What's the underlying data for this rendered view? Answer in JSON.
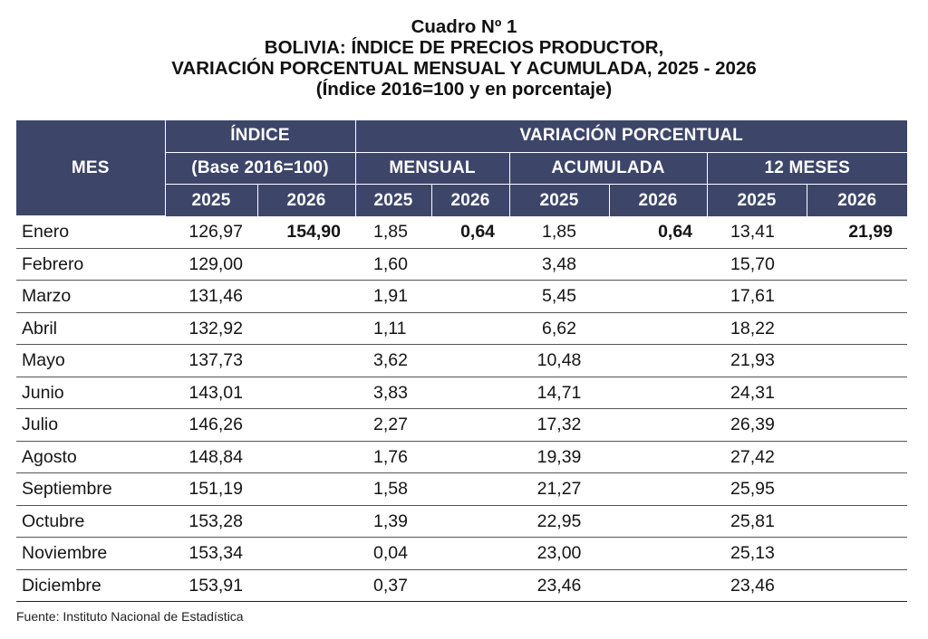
{
  "title": {
    "line1": "Cuadro Nº 1",
    "line2": "BOLIVIA: ÍNDICE DE PRECIOS PRODUCTOR,",
    "line3": "VARIACIÓN PORCENTUAL MENSUAL Y ACUMULADA, 2025 - 2026",
    "line4": "(Índice 2016=100 y en porcentaje)"
  },
  "header": {
    "mes": "MES",
    "indice": "ÍNDICE",
    "indice_base": "(Base 2016=100)",
    "variacion": "VARIACIÓN PORCENTUAL",
    "mensual": "MENSUAL",
    "acumulada": "ACUMULADA",
    "doce_meses": "12 MESES",
    "years": [
      "2025",
      "2026",
      "2025",
      "2026",
      "2025",
      "2026",
      "2025",
      "2026"
    ]
  },
  "rows": [
    {
      "mes": "Enero",
      "indice_2025": "126,97",
      "indice_2026": "154,90",
      "mensual_2025": "1,85",
      "mensual_2026": "0,64",
      "acumulada_2025": "1,85",
      "acumulada_2026": "0,64",
      "doce_2025": "13,41",
      "doce_2026": "21,99"
    },
    {
      "mes": "Febrero",
      "indice_2025": "129,00",
      "indice_2026": "",
      "mensual_2025": "1,60",
      "mensual_2026": "",
      "acumulada_2025": "3,48",
      "acumulada_2026": "",
      "doce_2025": "15,70",
      "doce_2026": ""
    },
    {
      "mes": "Marzo",
      "indice_2025": "131,46",
      "indice_2026": "",
      "mensual_2025": "1,91",
      "mensual_2026": "",
      "acumulada_2025": "5,45",
      "acumulada_2026": "",
      "doce_2025": "17,61",
      "doce_2026": ""
    },
    {
      "mes": "Abril",
      "indice_2025": "132,92",
      "indice_2026": "",
      "mensual_2025": "1,11",
      "mensual_2026": "",
      "acumulada_2025": "6,62",
      "acumulada_2026": "",
      "doce_2025": "18,22",
      "doce_2026": ""
    },
    {
      "mes": "Mayo",
      "indice_2025": "137,73",
      "indice_2026": "",
      "mensual_2025": "3,62",
      "mensual_2026": "",
      "acumulada_2025": "10,48",
      "acumulada_2026": "",
      "doce_2025": "21,93",
      "doce_2026": ""
    },
    {
      "mes": "Junio",
      "indice_2025": "143,01",
      "indice_2026": "",
      "mensual_2025": "3,83",
      "mensual_2026": "",
      "acumulada_2025": "14,71",
      "acumulada_2026": "",
      "doce_2025": "24,31",
      "doce_2026": ""
    },
    {
      "mes": "Julio",
      "indice_2025": "146,26",
      "indice_2026": "",
      "mensual_2025": "2,27",
      "mensual_2026": "",
      "acumulada_2025": "17,32",
      "acumulada_2026": "",
      "doce_2025": "26,39",
      "doce_2026": ""
    },
    {
      "mes": "Agosto",
      "indice_2025": "148,84",
      "indice_2026": "",
      "mensual_2025": "1,76",
      "mensual_2026": "",
      "acumulada_2025": "19,39",
      "acumulada_2026": "",
      "doce_2025": "27,42",
      "doce_2026": ""
    },
    {
      "mes": "Septiembre",
      "indice_2025": "151,19",
      "indice_2026": "",
      "mensual_2025": "1,58",
      "mensual_2026": "",
      "acumulada_2025": "21,27",
      "acumulada_2026": "",
      "doce_2025": "25,95",
      "doce_2026": ""
    },
    {
      "mes": "Octubre",
      "indice_2025": "153,28",
      "indice_2026": "",
      "mensual_2025": "1,39",
      "mensual_2026": "",
      "acumulada_2025": "22,95",
      "acumulada_2026": "",
      "doce_2025": "25,81",
      "doce_2026": ""
    },
    {
      "mes": "Noviembre",
      "indice_2025": "153,34",
      "indice_2026": "",
      "mensual_2025": "0,04",
      "mensual_2026": "",
      "acumulada_2025": "23,00",
      "acumulada_2026": "",
      "doce_2025": "25,13",
      "doce_2026": ""
    },
    {
      "mes": "Diciembre",
      "indice_2025": "153,91",
      "indice_2026": "",
      "mensual_2025": "0,37",
      "mensual_2026": "",
      "acumulada_2025": "23,46",
      "acumulada_2026": "",
      "doce_2025": "23,46",
      "doce_2026": ""
    }
  ],
  "source": "Fuente: Instituto Nacional de Estadística",
  "colors": {
    "header_bg": "#3d4669",
    "header_text": "#ffffff"
  }
}
